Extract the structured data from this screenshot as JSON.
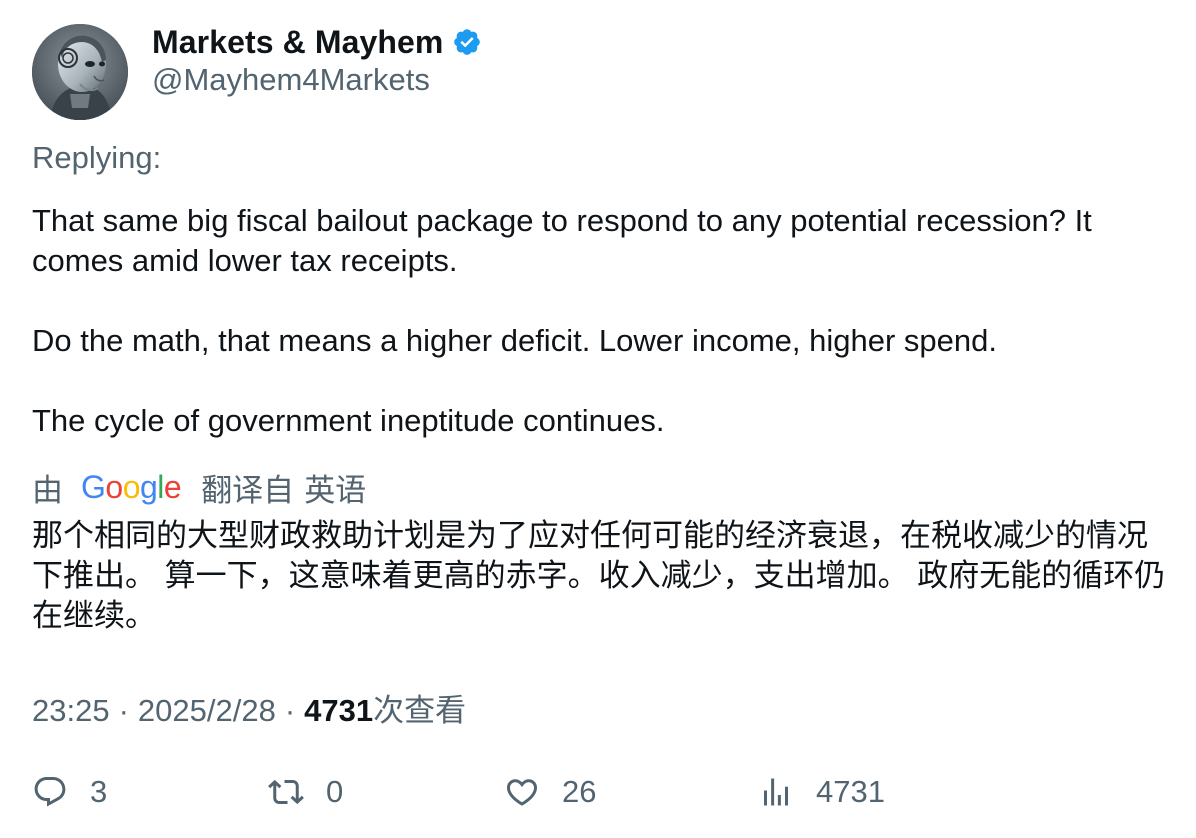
{
  "author": {
    "display_name": "Markets & Mayhem",
    "handle": "@Mayhem4Markets",
    "verified": true,
    "avatar_icon": "robot-avatar-icon"
  },
  "tweet": {
    "replying_label": "Replying:",
    "paragraphs": [
      "That same big fiscal bailout package to respond to any potential recession? It comes amid lower tax receipts.",
      "Do the math, that means a higher deficit. Lower income, higher spend.",
      "The cycle of government ineptitude continues."
    ]
  },
  "translation": {
    "by_label": "由",
    "google_logo_text": "Google",
    "translated_from_label": "翻译自",
    "source_language": "英语",
    "translated_text": "那个相同的大型财政救助计划是为了应对任何可能的经济衰退，在税收减少的情况下推出。 算一下，这意味着更高的赤字。收入减少，支出增加。 政府无能的循环仍在继续。"
  },
  "meta": {
    "time": "23:25",
    "separator": "·",
    "date": "2025/2/28",
    "views_count": "4731",
    "views_label": "次查看"
  },
  "actions": {
    "replies": "3",
    "retweets": "0",
    "likes": "26",
    "views": "4731"
  },
  "colors": {
    "text_primary": "#0f1419",
    "text_secondary": "#536471",
    "verified_blue": "#1d9bf0",
    "google_blue": "#4285f4",
    "google_red": "#ea4335",
    "google_yellow": "#fbbc05",
    "google_green": "#34a853"
  }
}
